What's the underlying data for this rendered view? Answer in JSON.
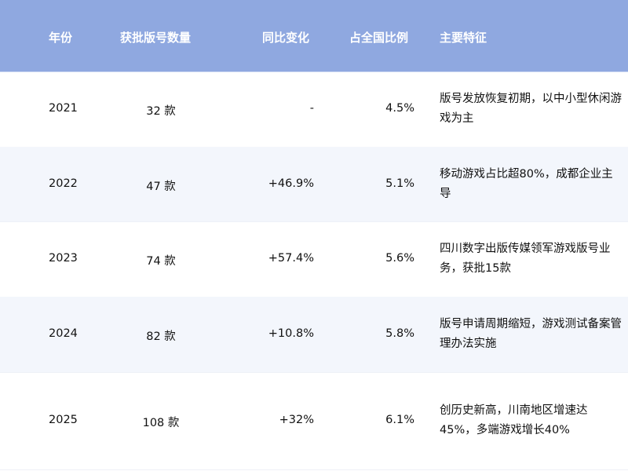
{
  "header": {
    "year": "年份",
    "count": "获批版号数量",
    "change": "同比变化",
    "ratio": "占全国比例",
    "feature": "主要特征"
  },
  "colors": {
    "header_bg": "#8fa8e0",
    "alt_row_bg": "#f3f6fc"
  },
  "rows": [
    {
      "year": "2021",
      "count": "32 款",
      "change": "-",
      "ratio": "4.5%",
      "feature": "版号发放恢复初期，以中小型休闲游戏为主"
    },
    {
      "year": "2022",
      "count": "47 款",
      "change": "+46.9%",
      "ratio": "5.1%",
      "feature": "移动游戏占比超80%，成都企业主导"
    },
    {
      "year": "2023",
      "count": "74 款",
      "change": "+57.4%",
      "ratio": "5.6%",
      "feature": "四川数字出版传媒领军游戏版号业务，获批15款"
    },
    {
      "year": "2024",
      "count": "82 款",
      "change": "+10.8%",
      "ratio": "5.8%",
      "feature": "版号申请周期缩短，游戏测试备案管理办法实施"
    },
    {
      "year": "2025",
      "count": "108 款",
      "change": "+32%",
      "ratio": "6.1%",
      "feature": "创历史新高，川南地区增速达45%，多端游戏增长40%"
    }
  ]
}
